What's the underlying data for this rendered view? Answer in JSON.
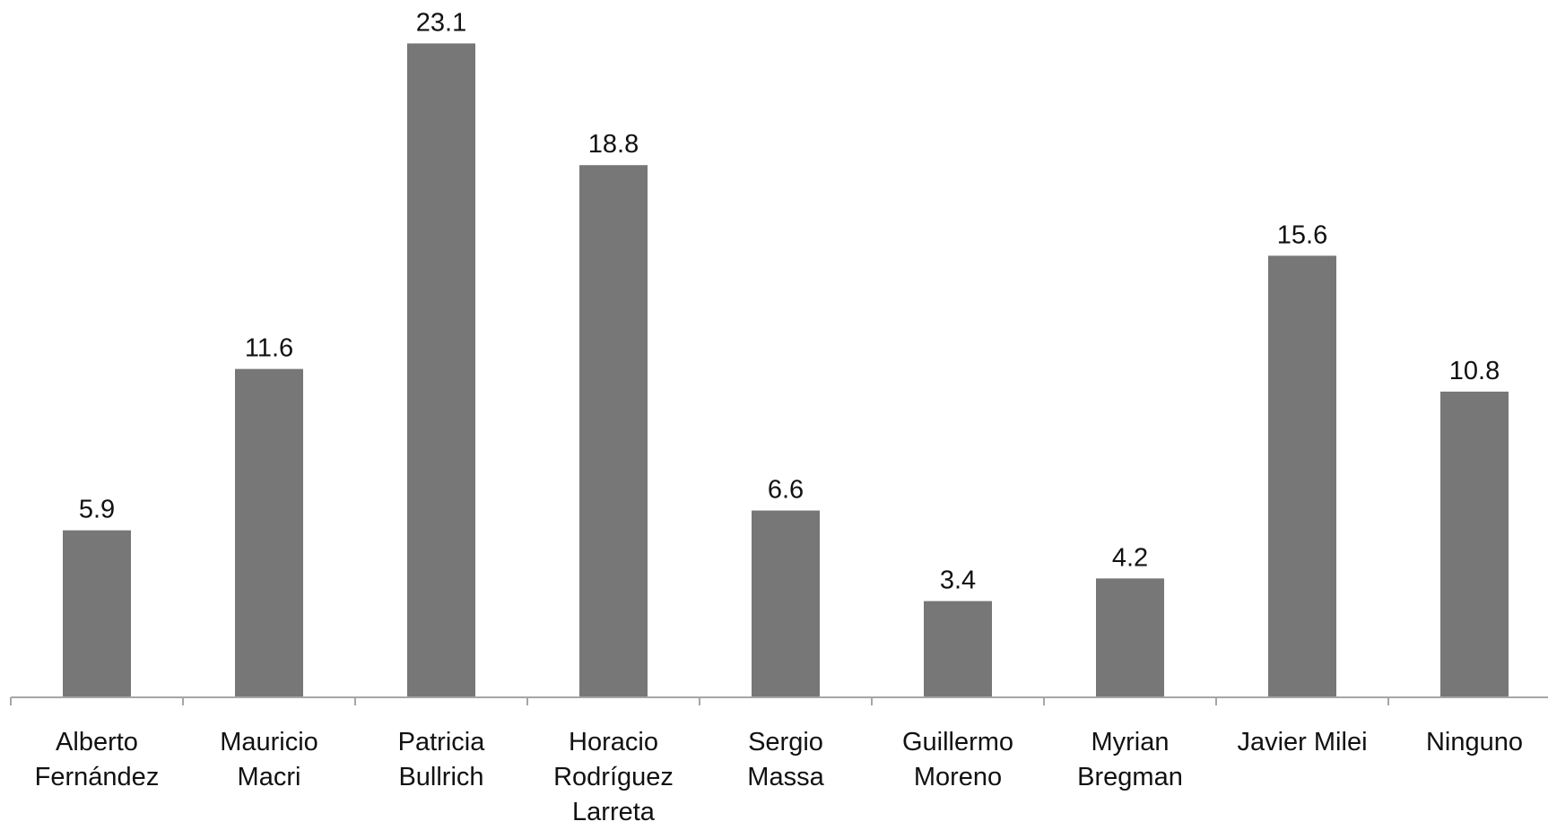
{
  "chart_data": {
    "type": "bar",
    "categories": [
      [
        "Alberto",
        "Fernández"
      ],
      [
        "Mauricio",
        "Macri"
      ],
      [
        "Patricia",
        "Bullrich"
      ],
      [
        "Horacio",
        "Rodríguez",
        "Larreta"
      ],
      [
        "Sergio",
        "Massa"
      ],
      [
        "Guillermo",
        "Moreno"
      ],
      [
        "Myrian",
        "Bregman"
      ],
      [
        "Javier Milei"
      ],
      [
        "Ninguno"
      ]
    ],
    "values": [
      5.9,
      11.6,
      23.1,
      18.8,
      6.6,
      3.4,
      4.2,
      15.6,
      10.8
    ],
    "value_labels": [
      "5.9",
      "11.6",
      "23.1",
      "18.8",
      "6.6",
      "3.4",
      "4.2",
      "15.6",
      "10.8"
    ],
    "ylim": [
      0,
      24
    ],
    "grid": false,
    "legend": "none",
    "colors": {
      "bar": "#777777",
      "axis": "#a6a6a6",
      "text": "#111111"
    }
  }
}
